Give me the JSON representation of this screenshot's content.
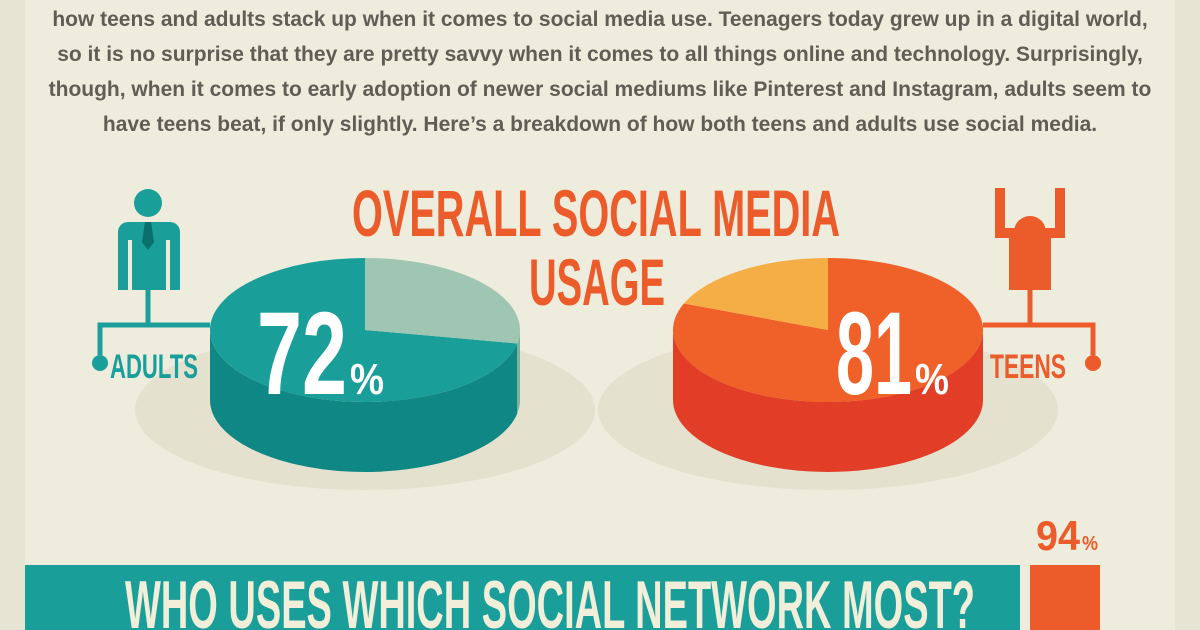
{
  "intro": [
    "how teens and adults stack up when it comes to social media use. Teenagers today grew up in a digital world,",
    "so it is no surprise that they are pretty savvy when it comes to all things online and technology. Surprisingly,",
    "though, when it comes to early adoption of newer social mediums like Pinterest and Instagram, adults seem to",
    "have teens beat, if only slightly. Here’s a breakdown of how both teens and adults use social media."
  ],
  "heading": [
    "OVERALL SOCIAL MEDIA",
    "USAGE"
  ],
  "groups": [
    {
      "label": "ADULTS",
      "value": 72,
      "unit": "%"
    },
    {
      "label": "TEENS",
      "value": 81,
      "unit": "%"
    }
  ],
  "section": {
    "title": "WHO USES WHICH SOCIAL NETWORK MOST?",
    "value": 94,
    "unit": "%"
  }
}
